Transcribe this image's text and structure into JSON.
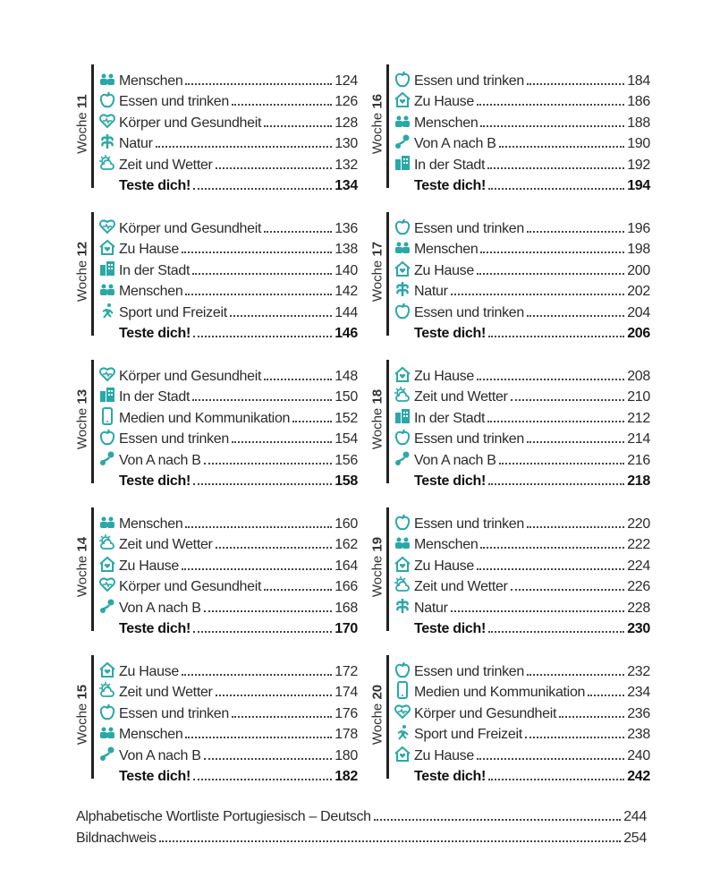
{
  "accent": "#2aa8a8",
  "weeks": [
    {
      "prefix": "Woche",
      "num": "11",
      "items": [
        {
          "icon": "people-icon",
          "label": "Menschen",
          "page": "124"
        },
        {
          "icon": "apple-icon",
          "label": "Essen und trinken",
          "page": "126"
        },
        {
          "icon": "heart-icon",
          "label": "Körper und Gesundheit",
          "page": "128"
        },
        {
          "icon": "plant-icon",
          "label": "Natur",
          "page": "130"
        },
        {
          "icon": "weather-icon",
          "label": "Zeit und Wetter",
          "page": "132"
        }
      ],
      "test": {
        "label": "Teste dich!",
        "page": "134"
      }
    },
    {
      "prefix": "Woche",
      "num": "12",
      "items": [
        {
          "icon": "heart-icon",
          "label": "Körper und Gesundheit",
          "page": "136"
        },
        {
          "icon": "house-icon",
          "label": "Zu Hause",
          "page": "138"
        },
        {
          "icon": "city-icon",
          "label": "In der Stadt",
          "page": "140"
        },
        {
          "icon": "people-icon",
          "label": "Menschen",
          "page": "142"
        },
        {
          "icon": "sport-icon",
          "label": "Sport und Freizeit",
          "page": "144"
        }
      ],
      "test": {
        "label": "Teste dich!",
        "page": "146"
      }
    },
    {
      "prefix": "Woche",
      "num": "13",
      "items": [
        {
          "icon": "heart-icon",
          "label": "Körper und Gesundheit",
          "page": "148"
        },
        {
          "icon": "city-icon",
          "label": "In der Stadt",
          "page": "150"
        },
        {
          "icon": "phone-icon",
          "label": "Medien und Kommunikation",
          "page": "152"
        },
        {
          "icon": "apple-icon",
          "label": "Essen und trinken",
          "page": "154"
        },
        {
          "icon": "route-icon",
          "label": "Von A nach B",
          "page": "156"
        }
      ],
      "test": {
        "label": "Teste dich!",
        "page": "158"
      }
    },
    {
      "prefix": "Woche",
      "num": "14",
      "items": [
        {
          "icon": "people-icon",
          "label": "Menschen",
          "page": "160"
        },
        {
          "icon": "weather-icon",
          "label": "Zeit und Wetter",
          "page": "162"
        },
        {
          "icon": "house-icon",
          "label": "Zu Hause",
          "page": "164"
        },
        {
          "icon": "heart-icon",
          "label": "Körper und Gesundheit",
          "page": "166"
        },
        {
          "icon": "route-icon",
          "label": "Von A nach B",
          "page": "168"
        }
      ],
      "test": {
        "label": "Teste dich!",
        "page": "170"
      }
    },
    {
      "prefix": "Woche",
      "num": "15",
      "items": [
        {
          "icon": "house-icon",
          "label": "Zu Hause",
          "page": "172"
        },
        {
          "icon": "weather-icon",
          "label": "Zeit und Wetter",
          "page": "174"
        },
        {
          "icon": "apple-icon",
          "label": "Essen und trinken",
          "page": "176"
        },
        {
          "icon": "people-icon",
          "label": "Menschen",
          "page": "178"
        },
        {
          "icon": "route-icon",
          "label": "Von A nach B",
          "page": "180"
        }
      ],
      "test": {
        "label": "Teste dich!",
        "page": "182"
      }
    },
    {
      "prefix": "Woche",
      "num": "16",
      "items": [
        {
          "icon": "apple-icon",
          "label": "Essen und trinken",
          "page": "184"
        },
        {
          "icon": "house-icon",
          "label": "Zu Hause",
          "page": "186"
        },
        {
          "icon": "people-icon",
          "label": "Menschen",
          "page": "188"
        },
        {
          "icon": "route-icon",
          "label": "Von A nach B",
          "page": "190"
        },
        {
          "icon": "city-icon",
          "label": "In der Stadt",
          "page": "192"
        }
      ],
      "test": {
        "label": "Teste dich!",
        "page": "194"
      }
    },
    {
      "prefix": "Woche",
      "num": "17",
      "items": [
        {
          "icon": "apple-icon",
          "label": "Essen und trinken",
          "page": "196"
        },
        {
          "icon": "people-icon",
          "label": "Menschen",
          "page": "198"
        },
        {
          "icon": "house-icon",
          "label": "Zu Hause",
          "page": "200"
        },
        {
          "icon": "plant-icon",
          "label": "Natur",
          "page": "202"
        },
        {
          "icon": "apple-icon",
          "label": "Essen und trinken",
          "page": "204"
        }
      ],
      "test": {
        "label": "Teste dich!",
        "page": "206"
      }
    },
    {
      "prefix": "Woche",
      "num": "18",
      "items": [
        {
          "icon": "house-icon",
          "label": "Zu Hause",
          "page": "208"
        },
        {
          "icon": "weather-icon",
          "label": "Zeit und Wetter",
          "page": "210"
        },
        {
          "icon": "city-icon",
          "label": "In der Stadt",
          "page": "212"
        },
        {
          "icon": "apple-icon",
          "label": "Essen und trinken",
          "page": "214"
        },
        {
          "icon": "route-icon",
          "label": "Von A nach B",
          "page": "216"
        }
      ],
      "test": {
        "label": "Teste dich!",
        "page": "218"
      }
    },
    {
      "prefix": "Woche",
      "num": "19",
      "items": [
        {
          "icon": "apple-icon",
          "label": "Essen und trinken",
          "page": "220"
        },
        {
          "icon": "people-icon",
          "label": "Menschen",
          "page": "222"
        },
        {
          "icon": "house-icon",
          "label": "Zu Hause",
          "page": "224"
        },
        {
          "icon": "weather-icon",
          "label": "Zeit und Wetter",
          "page": "226"
        },
        {
          "icon": "plant-icon",
          "label": "Natur",
          "page": "228"
        }
      ],
      "test": {
        "label": "Teste dich!",
        "page": "230"
      }
    },
    {
      "prefix": "Woche",
      "num": "20",
      "items": [
        {
          "icon": "apple-icon",
          "label": "Essen und trinken",
          "page": "232"
        },
        {
          "icon": "phone-icon",
          "label": "Medien und Kommunikation",
          "page": "234"
        },
        {
          "icon": "heart-icon",
          "label": "Körper und Gesundheit",
          "page": "236"
        },
        {
          "icon": "sport-icon",
          "label": "Sport und Freizeit",
          "page": "238"
        },
        {
          "icon": "house-icon",
          "label": "Zu Hause",
          "page": "240"
        }
      ],
      "test": {
        "label": "Teste dich!",
        "page": "242"
      }
    }
  ],
  "footer": [
    {
      "label": "Alphabetische Wortliste Portugiesisch – Deutsch",
      "page": "244"
    },
    {
      "label": "Bildnachweis",
      "page": "254"
    }
  ]
}
